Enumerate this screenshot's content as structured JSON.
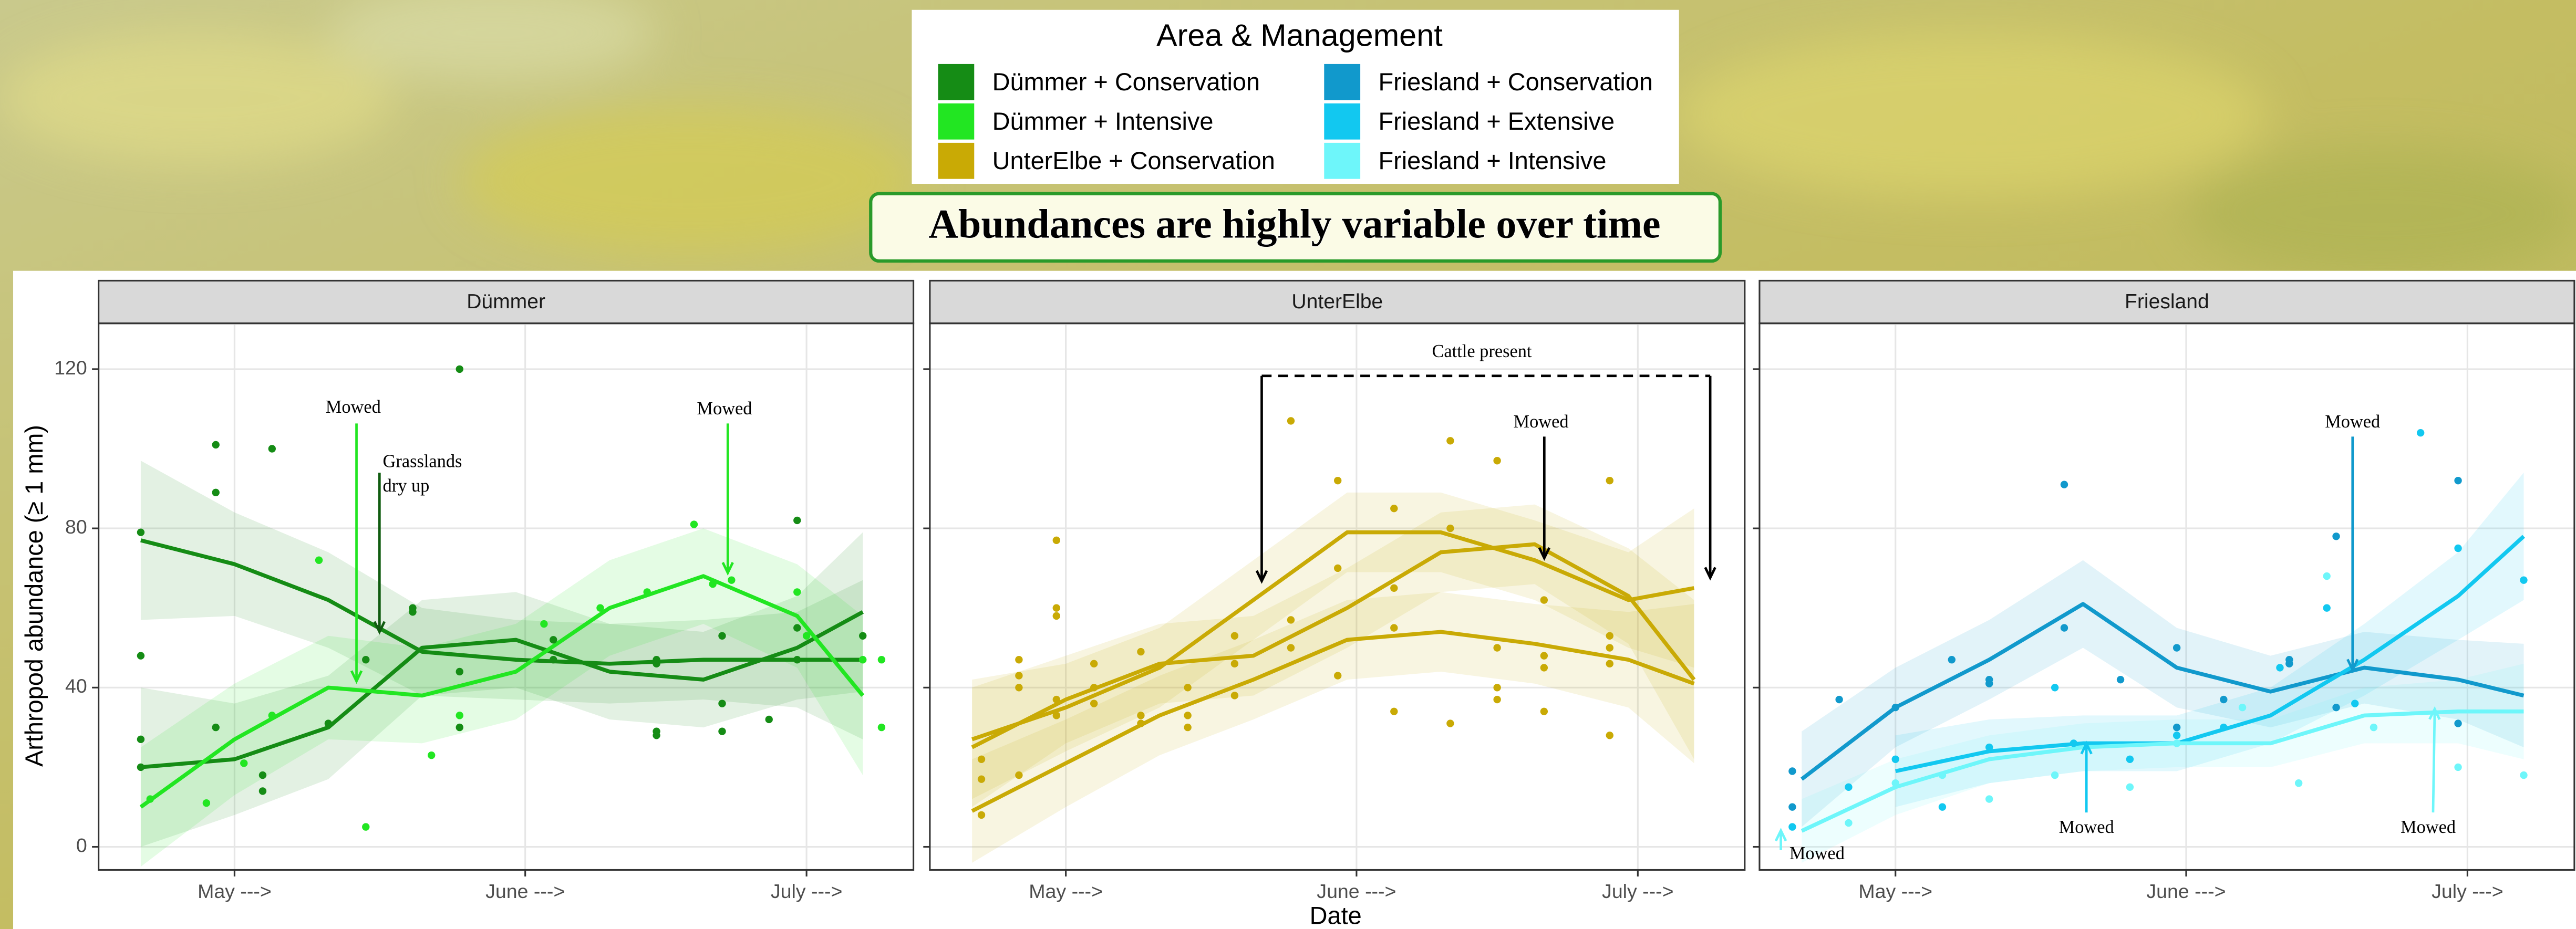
{
  "title": "Abundances are highly variable over time",
  "legend_title": "Area & Management",
  "xlabel": "Date",
  "ylabel": "Arthropod abundance (≥ 1 mm)",
  "chart_data": [
    {
      "type": "line",
      "title": "Dümmer",
      "xlim": [
        106.5,
        193.4
      ],
      "ylim": [
        -5.8,
        131.5
      ],
      "xticks": [
        {
          "value": 121,
          "label": "May --->"
        },
        {
          "value": 152,
          "label": "June --->"
        },
        {
          "value": 182,
          "label": "July --->"
        }
      ],
      "yticks": [
        0,
        40,
        80,
        120
      ],
      "grid": true,
      "x": [
        111,
        121,
        131,
        141,
        151,
        161,
        171,
        181,
        188
      ],
      "annotations": [
        "Mowed",
        "Grasslands",
        "dry up",
        "Mowed"
      ],
      "series": [
        {
          "name": "Dümmer + Conservation",
          "color": "#158c15",
          "curves": [
            [
              77,
              71,
              62,
              49,
              47,
              46,
              47,
              47,
              47
            ],
            [
              20,
              22,
              30,
              50,
              52,
              44,
              42,
              50,
              59
            ]
          ],
          "ci_lower": [
            [
              57,
              58,
              50,
              38,
              37,
              36,
              37,
              35,
              27
            ],
            [
              0,
              8,
              17,
              38,
              40,
              32,
              30,
              37,
              39
            ]
          ],
          "ci_upper": [
            [
              97,
              84,
              74,
              60,
              57,
              56,
              57,
              59,
              67
            ],
            [
              40,
              36,
              43,
              62,
              64,
              56,
              54,
              63,
              79
            ]
          ],
          "points": {
            "x": [
              111,
              111,
              111,
              111,
              119,
              119,
              119,
              124,
              124,
              125,
              131,
              135,
              140,
              140,
              145,
              145,
              145,
              155,
              155,
              166,
              166,
              166,
              166,
              173,
              173,
              173,
              178,
              181,
              181,
              181,
              188
            ],
            "y": [
              79,
              48,
              27,
              20,
              101,
              89,
              30,
              18,
              14,
              100,
              31,
              47,
              60,
              59,
              120,
              44,
              30,
              52,
              47,
              47,
              46,
              29,
              28,
              53,
              36,
              29,
              32,
              82,
              55,
              47,
              53
            ]
          }
        },
        {
          "name": "Dümmer + Intensive",
          "color": "#22e622",
          "curves": [
            [
              10,
              27,
              40,
              38,
              44,
              60,
              68,
              58,
              38
            ]
          ],
          "ci_lower": [
            [
              -5,
              13,
              27,
              26,
              32,
              48,
              56,
              45,
              18
            ]
          ],
          "ci_upper": [
            [
              25,
              41,
              53,
              50,
              56,
              72,
              80,
              71,
              58
            ]
          ],
          "points": {
            "x": [
              112,
              118,
              122,
              125,
              130,
              135,
              142,
              145,
              154,
              160,
              165,
              170,
              172,
              174,
              181,
              182,
              188,
              190,
              190
            ],
            "y": [
              12,
              11,
              21,
              33,
              72,
              5,
              23,
              33,
              56,
              60,
              64,
              81,
              66,
              67,
              64,
              53,
              47,
              30,
              47
            ]
          }
        }
      ]
    },
    {
      "type": "line",
      "title": "UnterElbe",
      "xlim": [
        106.5,
        193.4
      ],
      "ylim": [
        -5.8,
        131.5
      ],
      "xticks": [
        {
          "value": 121,
          "label": "May --->"
        },
        {
          "value": 152,
          "label": "June --->"
        },
        {
          "value": 182,
          "label": "July --->"
        }
      ],
      "yticks": [
        0,
        40,
        80,
        120
      ],
      "grid": true,
      "x": [
        111,
        121,
        131,
        141,
        151,
        161,
        171,
        181,
        188
      ],
      "annotations": [
        "Cattle present",
        "Mowed"
      ],
      "series": [
        {
          "name": "UnterElbe + Conservation",
          "color": "#c9aa05",
          "curves": [
            [
              27,
              35,
              45,
              62,
              79,
              79,
              72,
              62,
              65
            ],
            [
              9,
              21,
              33,
              42,
              52,
              54,
              51,
              47,
              41
            ],
            [
              25,
              37,
              46,
              48,
              60,
              74,
              76,
              63,
              42
            ]
          ],
          "ci_lower": [
            [
              12,
              24,
              35,
              52,
              69,
              69,
              62,
              50,
              45
            ],
            [
              -4,
              10,
              23,
              32,
              42,
              44,
              41,
              35,
              21
            ],
            [
              10,
              26,
              36,
              38,
              50,
              64,
              66,
              51,
              22
            ]
          ],
          "ci_upper": [
            [
              42,
              46,
              55,
              72,
              89,
              89,
              82,
              74,
              85
            ],
            [
              22,
              32,
              43,
              52,
              62,
              64,
              61,
              59,
              61
            ],
            [
              40,
              48,
              56,
              58,
              70,
              84,
              86,
              75,
              62
            ]
          ],
          "points": {
            "x": [
              112,
              112,
              112,
              116,
              116,
              116,
              116,
              120,
              120,
              120,
              120,
              120,
              124,
              124,
              124,
              129,
              129,
              129,
              134,
              134,
              134,
              139,
              139,
              139,
              145,
              145,
              145,
              150,
              150,
              150,
              156,
              156,
              156,
              156,
              162,
              162,
              162,
              167,
              167,
              167,
              167,
              172,
              172,
              172,
              172,
              179,
              179,
              179,
              179,
              179
            ],
            "y": [
              22,
              17,
              8,
              47,
              43,
              40,
              18,
              77,
              60,
              58,
              37,
              33,
              46,
              40,
              36,
              49,
              33,
              31,
              40,
              33,
              30,
              53,
              46,
              38,
              107,
              57,
              50,
              92,
              70,
              43,
              85,
              65,
              55,
              34,
              102,
              80,
              31,
              97,
              50,
              40,
              37,
              62,
              48,
              45,
              34,
              92,
              53,
              50,
              46,
              28
            ]
          }
        }
      ]
    },
    {
      "type": "line",
      "title": "Friesland",
      "xlim": [
        106.5,
        193.4
      ],
      "ylim": [
        -5.8,
        131.5
      ],
      "xticks": [
        {
          "value": 121,
          "label": "May --->"
        },
        {
          "value": 152,
          "label": "June --->"
        },
        {
          "value": 182,
          "label": "July --->"
        }
      ],
      "yticks": [
        0,
        40,
        80,
        120
      ],
      "grid": true,
      "x": [
        111,
        121,
        131,
        141,
        151,
        161,
        171,
        181,
        188
      ],
      "annotations": [
        "Mowed",
        "Mowed",
        "Mowed",
        "Mowed"
      ],
      "series": [
        {
          "name": "Friesland + Conservation",
          "color": "#1199cc",
          "curves": [
            [
              17,
              35,
              47,
              61,
              45,
              39,
              45,
              42,
              38
            ]
          ],
          "ci_lower": [
            [
              5,
              25,
              37,
              50,
              35,
              30,
              36,
              32,
              25
            ]
          ],
          "ci_upper": [
            [
              29,
              45,
              57,
              72,
              55,
              48,
              54,
              52,
              51
            ]
          ],
          "points": {
            "x": [
              110,
              110,
              115,
              121,
              127,
              131,
              131,
              139,
              139,
              145,
              151,
              151,
              156,
              163,
              163,
              168,
              168,
              181,
              181
            ],
            "y": [
              19,
              10,
              37,
              35,
              47,
              42,
              41,
              91,
              55,
              42,
              50,
              30,
              37,
              47,
              46,
              78,
              35,
              92,
              31
            ]
          }
        },
        {
          "name": "Friesland + Extensive",
          "color": "#12c8f0",
          "curves": [
            [
              null,
              19,
              24,
              26,
              26,
              33,
              47,
              63,
              78
            ]
          ],
          "ci_lower": [
            [
              null,
              10,
              16,
              19,
              19,
              26,
              38,
              52,
              62
            ]
          ],
          "ci_upper": [
            [
              null,
              28,
              32,
              33,
              33,
              40,
              56,
              74,
              94
            ]
          ],
          "points": {
            "x": [
              110,
              116,
              121,
              126,
              131,
              138,
              140,
              146,
              151,
              156,
              162,
              167,
              170,
              177,
              181,
              188
            ],
            "y": [
              5,
              15,
              22,
              10,
              25,
              40,
              26,
              22,
              28,
              30,
              45,
              60,
              36,
              104,
              75,
              67
            ]
          }
        },
        {
          "name": "Friesland + Intensive",
          "color": "#6ef6fa",
          "curves": [
            [
              4,
              15,
              22,
              25,
              26,
              26,
              33,
              34,
              34
            ]
          ],
          "ci_lower": [
            [
              -4,
              8,
              16,
              19,
              20,
              20,
              26,
              26,
              22
            ]
          ],
          "ci_upper": [
            [
              12,
              22,
              28,
              31,
              32,
              32,
              40,
              42,
              46
            ]
          ],
          "points": {
            "x": [
              116,
              121,
              126,
              131,
              138,
              146,
              151,
              158,
              164,
              167,
              172,
              181,
              188
            ],
            "y": [
              6,
              16,
              18,
              12,
              18,
              15,
              26,
              35,
              16,
              68,
              30,
              20,
              18
            ]
          }
        }
      ]
    }
  ]
}
